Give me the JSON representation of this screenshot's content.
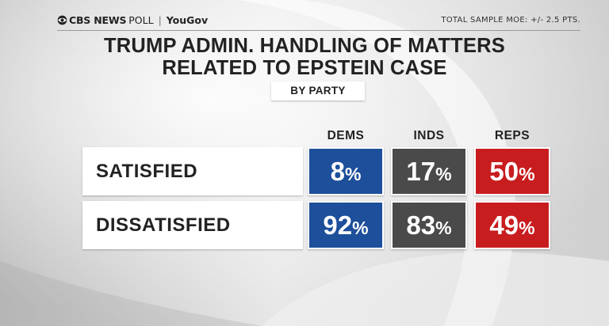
{
  "header": {
    "brand_cbs": "CBS NEWS",
    "brand_poll": "POLL",
    "brand_sep": "|",
    "brand_yougov": "YouGov",
    "moe": "TOTAL SAMPLE MOE: +/- 2.5 PTS."
  },
  "colors": {
    "dems": "#1d4f9a",
    "inds": "#4a4a4a",
    "reps": "#c81d1f"
  },
  "chart_data": {
    "type": "table",
    "title": [
      "TRUMP ADMIN. HANDLING OF MATTERS",
      "RELATED TO EPSTEIN CASE"
    ],
    "subtitle": "BY PARTY",
    "columns": [
      "DEMS",
      "INDS",
      "REPS"
    ],
    "rows": [
      "SATISFIED",
      "DISSATISFIED"
    ],
    "unit": "%",
    "series": [
      {
        "name": "DEMS",
        "values": [
          8,
          92
        ]
      },
      {
        "name": "INDS",
        "values": [
          17,
          83
        ]
      },
      {
        "name": "REPS",
        "values": [
          50,
          49
        ]
      }
    ]
  }
}
